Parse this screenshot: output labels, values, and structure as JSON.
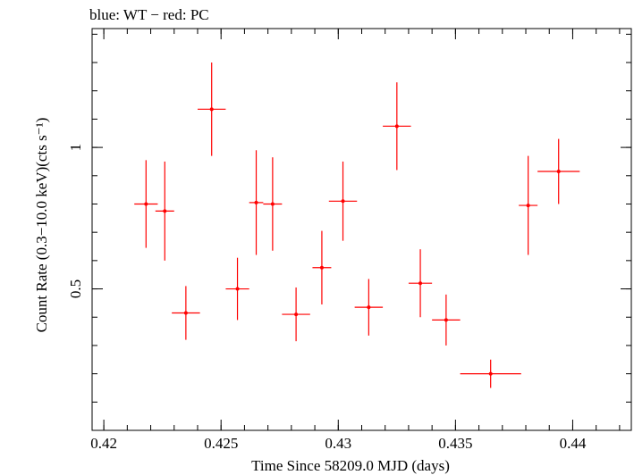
{
  "chart_data": {
    "type": "scatter",
    "title": "blue: WT − red: PC",
    "xlabel": "Time Since 58209.0 MJD (days)",
    "ylabel": "Count Rate (0.3−10.0 keV)(cts s⁻¹)",
    "xlim": [
      0.4195,
      0.4425
    ],
    "ylim": [
      0.0,
      1.42
    ],
    "x_ticks": [
      {
        "value": 0.42,
        "label": "0.42"
      },
      {
        "value": 0.425,
        "label": "0.425"
      },
      {
        "value": 0.43,
        "label": "0.43"
      },
      {
        "value": 0.435,
        "label": "0.435"
      },
      {
        "value": 0.44,
        "label": "0.44"
      }
    ],
    "x_minor_step": 0.001,
    "y_ticks": [
      {
        "value": 0.5,
        "label": "0.5"
      },
      {
        "value": 1.0,
        "label": "1"
      }
    ],
    "y_minor_step": 0.1,
    "grid": false,
    "series": [
      {
        "color": "#ff0000",
        "points": [
          {
            "x": 0.4218,
            "y": 0.8,
            "xerr": 0.0005,
            "yerr_lo": 0.155,
            "yerr_hi": 0.155
          },
          {
            "x": 0.4226,
            "y": 0.775,
            "xerr": 0.0004,
            "yerr_lo": 0.175,
            "yerr_hi": 0.175
          },
          {
            "x": 0.4235,
            "y": 0.415,
            "xerr": 0.0006,
            "yerr_lo": 0.095,
            "yerr_hi": 0.095
          },
          {
            "x": 0.4246,
            "y": 1.135,
            "xerr": 0.0006,
            "yerr_lo": 0.165,
            "yerr_hi": 0.165
          },
          {
            "x": 0.4257,
            "y": 0.5,
            "xerr": 0.0005,
            "yerr_lo": 0.11,
            "yerr_hi": 0.11
          },
          {
            "x": 0.4265,
            "y": 0.805,
            "xerr": 0.0003,
            "yerr_lo": 0.185,
            "yerr_hi": 0.185
          },
          {
            "x": 0.4272,
            "y": 0.8,
            "xerr": 0.0004,
            "yerr_lo": 0.165,
            "yerr_hi": 0.165
          },
          {
            "x": 0.4282,
            "y": 0.41,
            "xerr": 0.0006,
            "yerr_lo": 0.095,
            "yerr_hi": 0.095
          },
          {
            "x": 0.4293,
            "y": 0.575,
            "xerr": 0.0004,
            "yerr_lo": 0.13,
            "yerr_hi": 0.13
          },
          {
            "x": 0.4302,
            "y": 0.81,
            "xerr": 0.0006,
            "yerr_lo": 0.14,
            "yerr_hi": 0.14
          },
          {
            "x": 0.4313,
            "y": 0.435,
            "xerr": 0.0006,
            "yerr_lo": 0.1,
            "yerr_hi": 0.1
          },
          {
            "x": 0.4325,
            "y": 1.075,
            "xerr": 0.0006,
            "yerr_lo": 0.155,
            "yerr_hi": 0.155
          },
          {
            "x": 0.4335,
            "y": 0.52,
            "xerr": 0.0005,
            "yerr_lo": 0.12,
            "yerr_hi": 0.12
          },
          {
            "x": 0.4346,
            "y": 0.39,
            "xerr": 0.0006,
            "yerr_lo": 0.09,
            "yerr_hi": 0.09
          },
          {
            "x": 0.4365,
            "y": 0.2,
            "xerr": 0.0013,
            "yerr_lo": 0.05,
            "yerr_hi": 0.05
          },
          {
            "x": 0.4381,
            "y": 0.795,
            "xerr": 0.0004,
            "yerr_lo": 0.175,
            "yerr_hi": 0.175
          },
          {
            "x": 0.4394,
            "y": 0.915,
            "xerr": 0.0009,
            "yerr_lo": 0.115,
            "yerr_hi": 0.115
          }
        ]
      }
    ]
  }
}
